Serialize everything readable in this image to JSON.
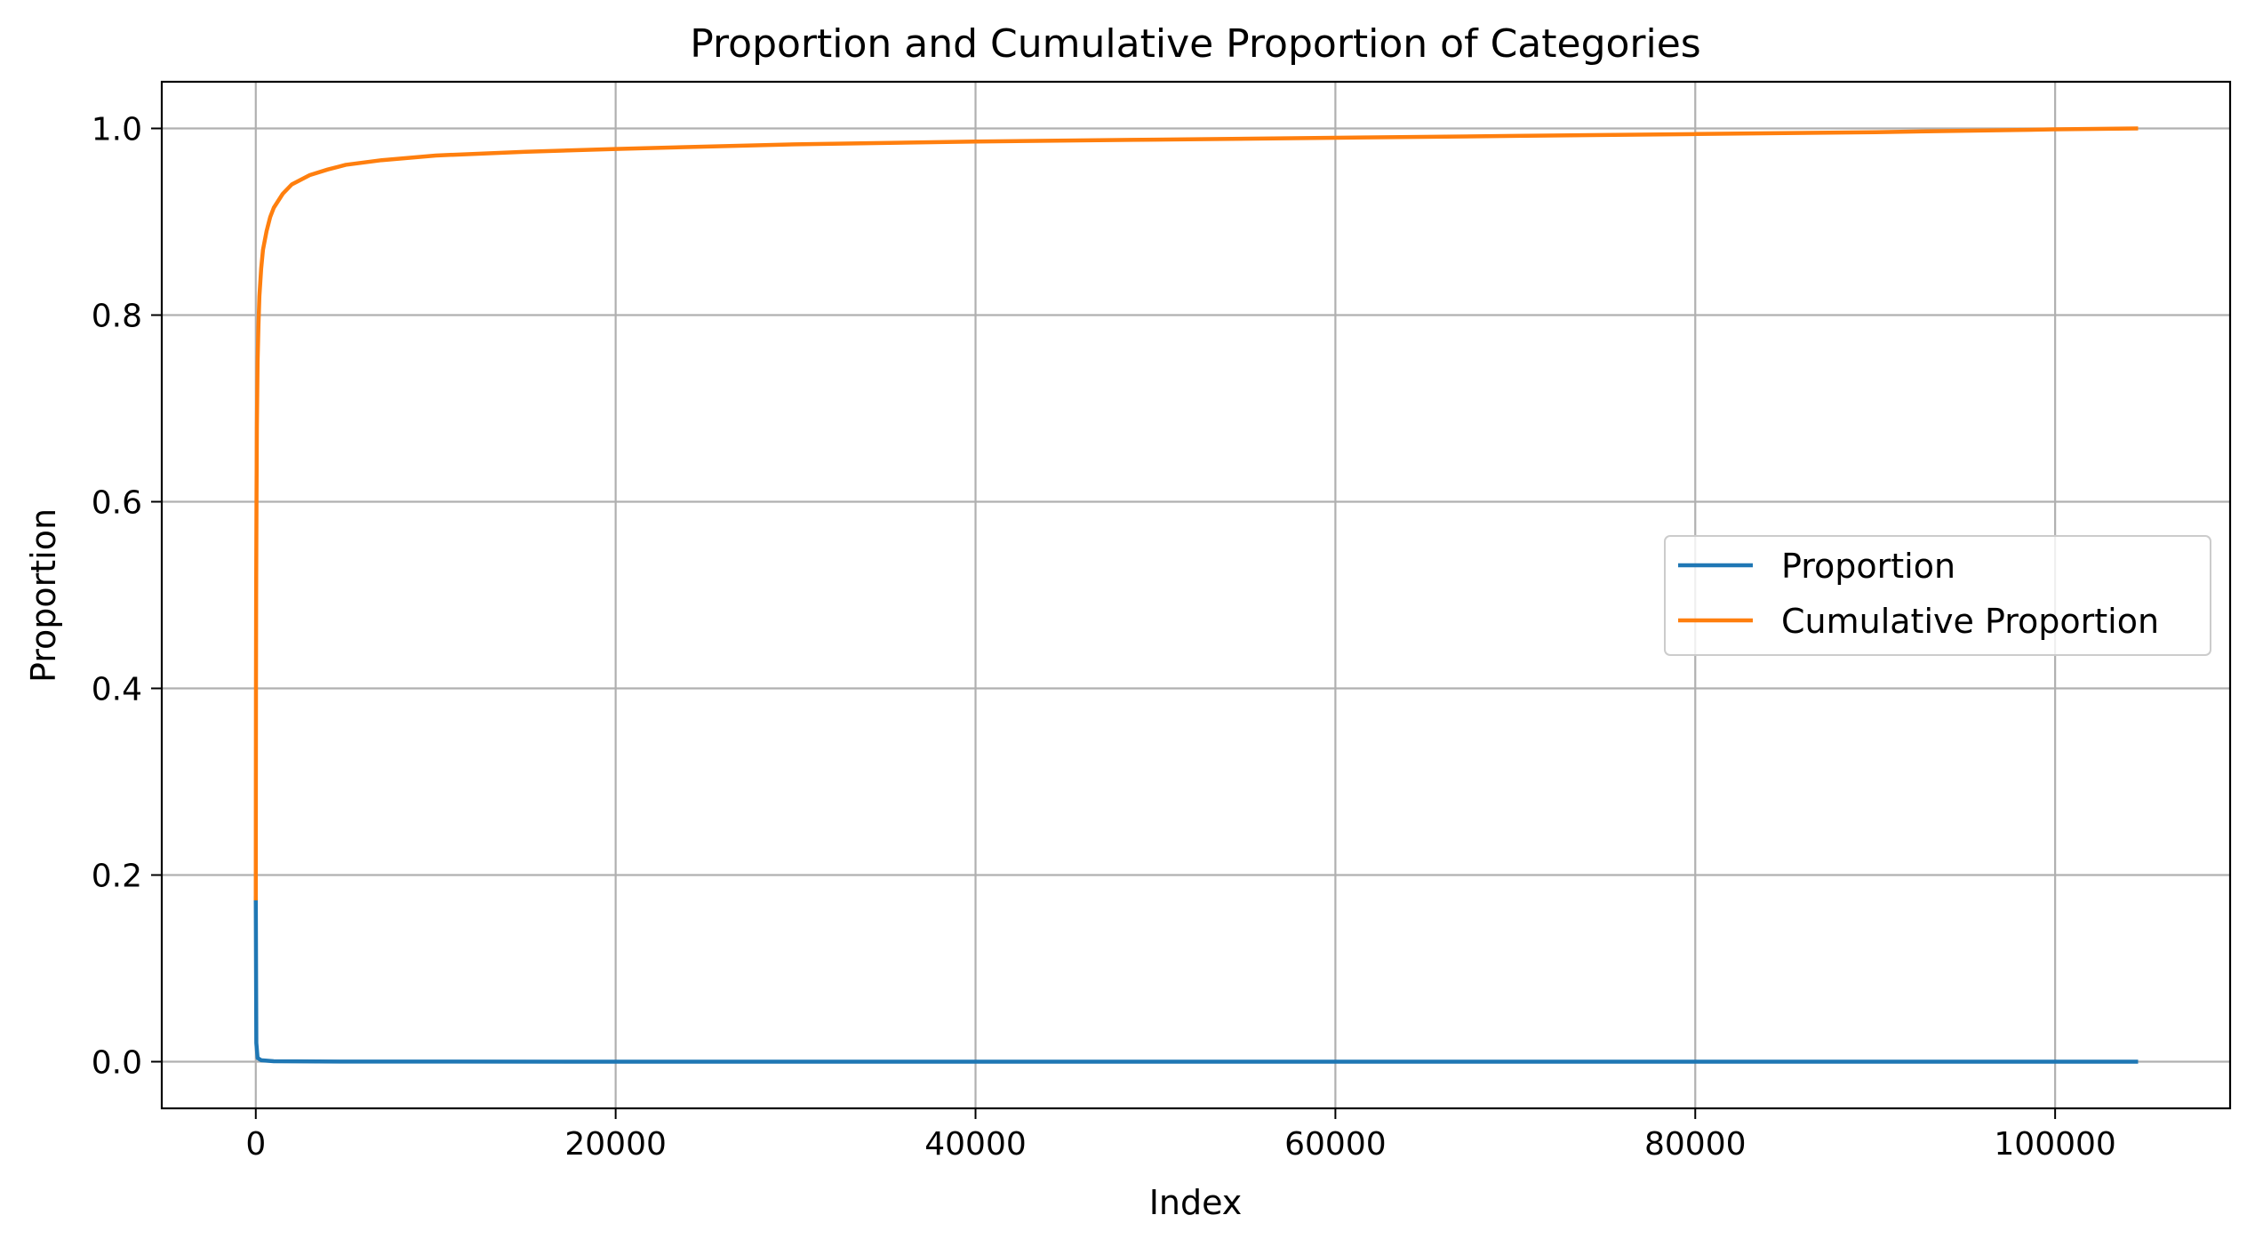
{
  "chart_data": {
    "type": "line",
    "title": "Proportion and Cumulative Proportion of Categories",
    "xlabel": "Index",
    "ylabel": "Proportion",
    "xlim": [
      -5225,
      109725
    ],
    "ylim": [
      -0.05,
      1.05
    ],
    "x_ticks": [
      0,
      20000,
      40000,
      60000,
      80000,
      100000
    ],
    "x_tick_labels": [
      "0",
      "20000",
      "40000",
      "60000",
      "80000",
      "100000"
    ],
    "y_ticks": [
      0.0,
      0.2,
      0.4,
      0.6,
      0.8,
      1.0
    ],
    "y_tick_labels": [
      "0.0",
      "0.2",
      "0.4",
      "0.6",
      "0.8",
      "1.0"
    ],
    "grid": true,
    "legend": {
      "placement": "center-right"
    },
    "series": [
      {
        "name": "Proportion",
        "color": "#1f77b4",
        "x": [
          0,
          30,
          100,
          300,
          1000,
          5000,
          20000,
          50000,
          104500
        ],
        "y": [
          0.175,
          0.02,
          0.004,
          0.0015,
          0.0005,
          0.0001,
          2e-05,
          1e-05,
          5e-06
        ]
      },
      {
        "name": "Cumulative Proportion",
        "color": "#ff7f0e",
        "x": [
          0,
          5,
          10,
          20,
          40,
          60,
          100,
          150,
          200,
          300,
          400,
          600,
          800,
          1000,
          1500,
          2000,
          3000,
          4000,
          5000,
          7000,
          10000,
          15000,
          20000,
          30000,
          40000,
          50000,
          60000,
          70000,
          80000,
          90000,
          100000,
          104500
        ],
        "y": [
          0.175,
          0.3,
          0.4,
          0.5,
          0.6,
          0.68,
          0.75,
          0.79,
          0.82,
          0.85,
          0.87,
          0.89,
          0.905,
          0.915,
          0.93,
          0.94,
          0.95,
          0.956,
          0.961,
          0.966,
          0.971,
          0.975,
          0.978,
          0.983,
          0.986,
          0.988,
          0.99,
          0.992,
          0.994,
          0.996,
          0.999,
          1.0
        ]
      }
    ]
  }
}
